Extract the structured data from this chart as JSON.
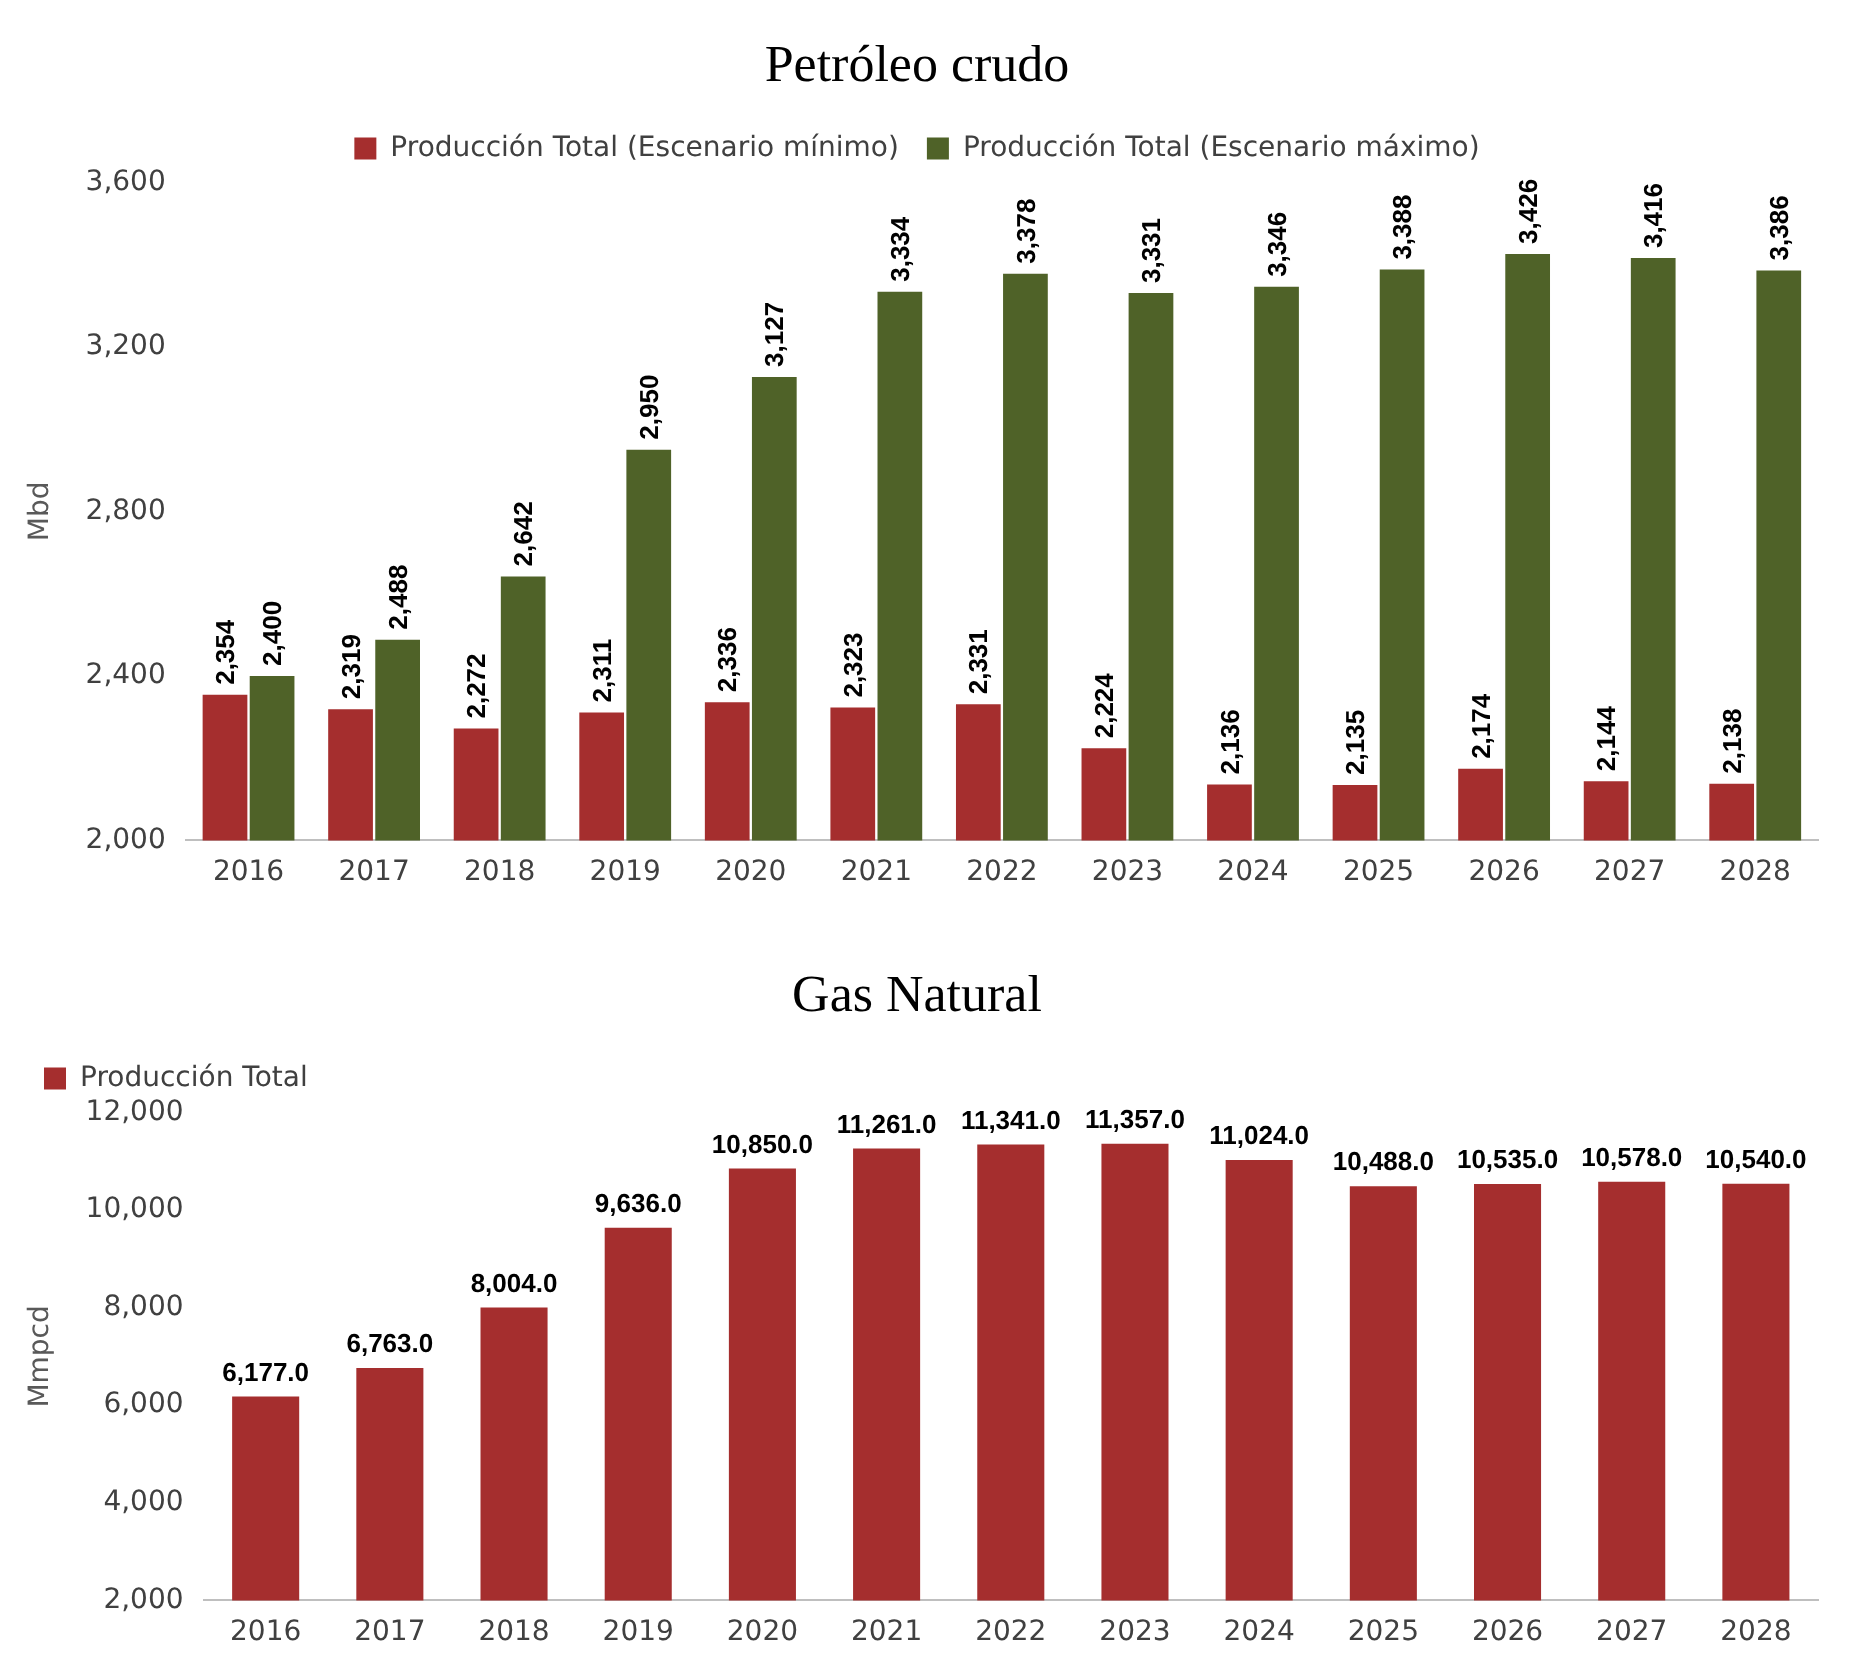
{
  "chart_data": [
    {
      "type": "bar",
      "title": "Petróleo crudo",
      "ylabel": "Mbd",
      "categories": [
        "2016",
        "2017",
        "2018",
        "2019",
        "2020",
        "2021",
        "2022",
        "2023",
        "2024",
        "2025",
        "2026",
        "2027",
        "2028"
      ],
      "series": [
        {
          "name": "Producción Total (Escenario mínimo)",
          "color": "#a52e2e",
          "values": [
            2354,
            2319,
            2272,
            2311,
            2336,
            2323,
            2331,
            2224,
            2136,
            2135,
            2174,
            2144,
            2138
          ],
          "value_labels": [
            "2,354",
            "2,319",
            "2,272",
            "2,311",
            "2,336",
            "2,323",
            "2,331",
            "2,224",
            "2,136",
            "2,135",
            "2,174",
            "2,144",
            "2,138"
          ]
        },
        {
          "name": "Producción Total (Escenario máximo)",
          "color": "#4f6228",
          "values": [
            2400,
            2488,
            2642,
            2950,
            3127,
            3334,
            3378,
            3331,
            3346,
            3388,
            3426,
            3416,
            3386
          ],
          "value_labels": [
            "2,400",
            "2,488",
            "2,642",
            "2,950",
            "3,127",
            "3,334",
            "3,378",
            "3,331",
            "3,346",
            "3,388",
            "3,426",
            "3,416",
            "3,386"
          ]
        }
      ],
      "ylim": [
        2000,
        3600
      ],
      "yticks": [
        {
          "value": 2000,
          "label": "2,000"
        },
        {
          "value": 2400,
          "label": "2,400"
        },
        {
          "value": 2800,
          "label": "2,800"
        },
        {
          "value": 3200,
          "label": "3,200"
        },
        {
          "value": 3600,
          "label": "3,600"
        }
      ],
      "grid": false,
      "legend": "top"
    },
    {
      "type": "bar",
      "title": "Gas Natural",
      "ylabel": "Mmpcd",
      "categories": [
        "2016",
        "2017",
        "2018",
        "2019",
        "2020",
        "2021",
        "2022",
        "2023",
        "2024",
        "2025",
        "2026",
        "2027",
        "2028"
      ],
      "series": [
        {
          "name": "Producción Total",
          "color": "#a52e2e",
          "values": [
            6177,
            6763,
            8004,
            9636,
            10850,
            11261,
            11341,
            11357,
            11024,
            10488,
            10535,
            10578,
            10540
          ],
          "value_labels": [
            "6,177.0",
            "6,763.0",
            "8,004.0",
            "9,636.0",
            "10,850.0",
            "11,261.0",
            "11,341.0",
            "11,357.0",
            "11,024.0",
            "10,488.0",
            "10,535.0",
            "10,578.0",
            "10,540.0"
          ]
        }
      ],
      "ylim": [
        2000,
        12000
      ],
      "yticks": [
        {
          "value": 2000,
          "label": "2,000"
        },
        {
          "value": 4000,
          "label": "4,000"
        },
        {
          "value": 6000,
          "label": "6,000"
        },
        {
          "value": 8000,
          "label": "8,000"
        },
        {
          "value": 10000,
          "label": "10,000"
        },
        {
          "value": 12000,
          "label": "12,000"
        }
      ],
      "grid": false,
      "legend": "top left"
    }
  ]
}
